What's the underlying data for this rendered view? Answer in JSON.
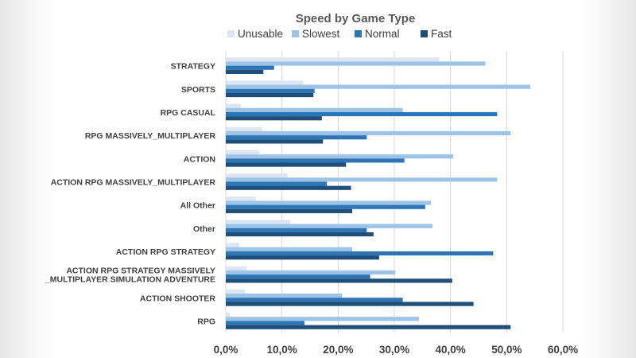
{
  "chart_data": {
    "type": "bar",
    "orientation": "horizontal",
    "title": "Speed by Game Type",
    "xlabel": "",
    "ylabel": "",
    "xlim": [
      0,
      0.6
    ],
    "ticks": [
      0,
      0.1,
      0.2,
      0.3,
      0.4,
      0.5,
      0.6
    ],
    "tick_labels": [
      "0,0%",
      "10,0%",
      "20,0%",
      "30,0%",
      "40,0%",
      "50,0%",
      "60,0%"
    ],
    "grid": true,
    "legend_position": "top",
    "categories": [
      [
        "STRATEGY"
      ],
      [
        "SPORTS"
      ],
      [
        "RPG CASUAL"
      ],
      [
        "RPG MASSIVELY_MULTIPLAYER"
      ],
      [
        "ACTION"
      ],
      [
        "ACTION RPG MASSIVELY_MULTIPLAYER"
      ],
      [
        "All Other"
      ],
      [
        "Other"
      ],
      [
        "ACTION RPG STRATEGY"
      ],
      [
        "ACTION RPG STRATEGY MASSIVELY",
        "_MULTIPLAYER SIMULATION ADVENTURE"
      ],
      [
        "ACTION SHOOTER"
      ],
      [
        "RPG"
      ]
    ],
    "series": [
      {
        "name": "Unusable",
        "color": "#dce6f2",
        "values": [
          0.38,
          0.138,
          0.027,
          0.065,
          0.06,
          0.11,
          0.053,
          0.115,
          0.024,
          0.037,
          0.034,
          0.007
        ]
      },
      {
        "name": "Slowest",
        "color": "#9dc3e6",
        "values": [
          0.462,
          0.542,
          0.315,
          0.507,
          0.405,
          0.483,
          0.365,
          0.368,
          0.225,
          0.302,
          0.207,
          0.344
        ]
      },
      {
        "name": "Normal",
        "color": "#2e75b6",
        "values": [
          0.086,
          0.158,
          0.483,
          0.251,
          0.318,
          0.18,
          0.355,
          0.251,
          0.476,
          0.257,
          0.315,
          0.14
        ]
      },
      {
        "name": "Fast",
        "color": "#1f4e79",
        "values": [
          0.067,
          0.156,
          0.171,
          0.173,
          0.214,
          0.223,
          0.225,
          0.263,
          0.273,
          0.403,
          0.441,
          0.507
        ]
      }
    ]
  }
}
